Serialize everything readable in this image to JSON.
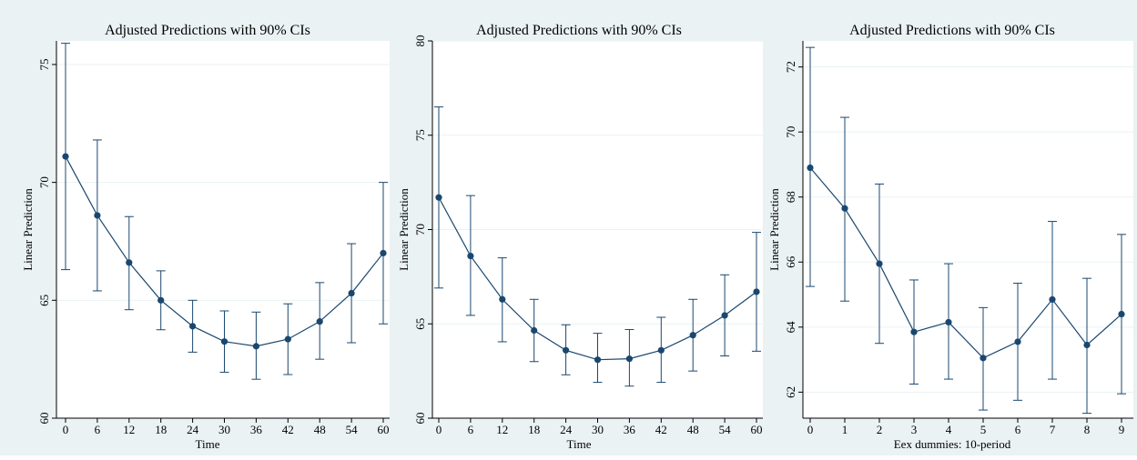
{
  "chart_data": [
    {
      "type": "line",
      "title": "Adjusted Predictions with 90% CIs",
      "xlabel": "Time",
      "ylabel": "Linear Prediction",
      "x": [
        0,
        6,
        12,
        18,
        24,
        30,
        36,
        42,
        48,
        54,
        60
      ],
      "xticks": [
        "0",
        "6",
        "12",
        "18",
        "24",
        "30",
        "36",
        "42",
        "48",
        "54",
        "60"
      ],
      "xlim": [
        0,
        60
      ],
      "yticks": [
        60,
        65,
        70,
        75
      ],
      "ylim": [
        60,
        76
      ],
      "grid": true,
      "series": [
        {
          "values": [
            71.1,
            68.6,
            66.6,
            65.0,
            63.9,
            63.25,
            63.05,
            63.35,
            64.1,
            65.3,
            67.0
          ],
          "ci_low": [
            66.3,
            65.4,
            64.6,
            63.75,
            62.8,
            61.95,
            61.65,
            61.85,
            62.5,
            63.2,
            64.0
          ],
          "ci_high": [
            75.9,
            71.8,
            68.55,
            66.25,
            65.0,
            64.55,
            64.5,
            64.85,
            65.75,
            67.4,
            70.0
          ]
        }
      ]
    },
    {
      "type": "line",
      "title": "Adjusted Predictions with 90% CIs",
      "xlabel": "Time",
      "ylabel": "Linear Prediction",
      "x": [
        0,
        6,
        12,
        18,
        24,
        30,
        36,
        42,
        48,
        54,
        60
      ],
      "xticks": [
        "0",
        "6",
        "12",
        "18",
        "24",
        "30",
        "36",
        "42",
        "48",
        "54",
        "60"
      ],
      "xlim": [
        0,
        60
      ],
      "yticks": [
        60,
        65,
        70,
        75,
        80
      ],
      "ylim": [
        60,
        80
      ],
      "grid": true,
      "series": [
        {
          "values": [
            71.7,
            68.6,
            66.3,
            64.65,
            63.6,
            63.1,
            63.15,
            63.6,
            64.4,
            65.45,
            66.7
          ],
          "ci_low": [
            66.9,
            65.45,
            64.05,
            63.0,
            62.3,
            61.9,
            61.7,
            61.9,
            62.5,
            63.3,
            63.55
          ],
          "ci_high": [
            76.5,
            71.8,
            68.5,
            66.3,
            64.95,
            64.5,
            64.7,
            65.35,
            66.3,
            67.6,
            69.85
          ]
        }
      ]
    },
    {
      "type": "line",
      "title": "Adjusted Predictions with 90% CIs",
      "xlabel": "Eex dummies: 10-period",
      "ylabel": "Linear Prediction",
      "x": [
        0,
        1,
        2,
        3,
        4,
        5,
        6,
        7,
        8,
        9
      ],
      "xticks": [
        "0",
        "1",
        "2",
        "3",
        "4",
        "5",
        "6",
        "7",
        "8",
        "9"
      ],
      "xlim": [
        0,
        9
      ],
      "yticks": [
        62,
        64,
        66,
        68,
        70,
        72
      ],
      "ylim": [
        61.2,
        72.8
      ],
      "grid": true,
      "series": [
        {
          "values": [
            68.9,
            67.65,
            65.95,
            63.85,
            64.15,
            63.05,
            63.55,
            64.85,
            63.45,
            64.4
          ],
          "ci_low": [
            65.25,
            64.8,
            63.5,
            62.25,
            62.4,
            61.45,
            61.75,
            62.4,
            61.35,
            61.95
          ],
          "ci_high": [
            72.6,
            70.45,
            68.4,
            65.45,
            65.95,
            64.6,
            65.35,
            67.25,
            65.5,
            66.85
          ]
        }
      ]
    }
  ],
  "colors": {
    "outer_bg": "#eaf2f3",
    "plot_bg": "#ffffff",
    "series": "#1a476f",
    "grid": "#eaf2f3",
    "axis": "#000000"
  }
}
